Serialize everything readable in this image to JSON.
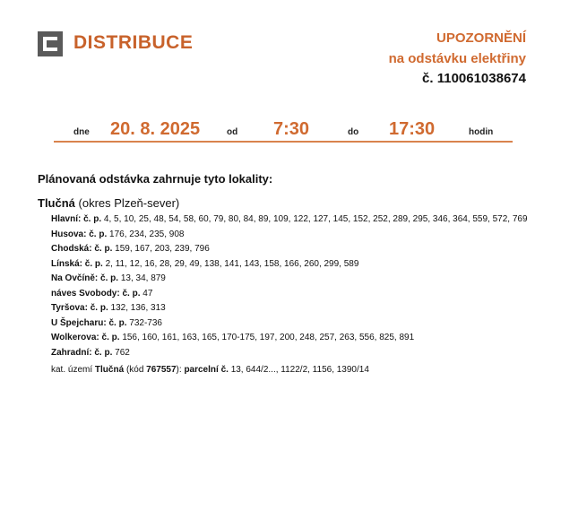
{
  "brand": {
    "name": "DISTRIBUCE",
    "logo_icon": "cez-logo-icon",
    "accent": "#d06a30"
  },
  "header": {
    "title": "UPOZORNĚNÍ",
    "subtitle": "na odstávku elektřiny",
    "number": "č. 110061038674"
  },
  "schedule": {
    "date_label": "dne",
    "date": "20. 8. 2025",
    "from_label": "od",
    "from": "7:30",
    "to_label": "do",
    "to": "17:30",
    "unit_label": "hodin"
  },
  "intro": "Plánovaná odstávka zahrnuje tyto lokality:",
  "town": {
    "name": "Tlučná",
    "district": "(okres Plzeň-sever)"
  },
  "streets": [
    {
      "name": "Hlavní:",
      "label": "č. p.",
      "numbers": "4, 5, 10, 25, 48, 54, 58, 60, 79, 80, 84, 89, 109, 122, 127, 145, 152, 252, 289, 295, 346, 364, 559, 572, 769"
    },
    {
      "name": "Husova:",
      "label": "č. p.",
      "numbers": "176, 234, 235, 908"
    },
    {
      "name": "Chodská:",
      "label": "č. p.",
      "numbers": "159, 167, 203, 239, 796"
    },
    {
      "name": "Línská:",
      "label": "č. p.",
      "numbers": "2, 11, 12, 16, 28, 29, 49, 138, 141, 143, 158, 166, 260, 299, 589"
    },
    {
      "name": "Na Ovčíně:",
      "label": "č. p.",
      "numbers": "13, 34, 879"
    },
    {
      "name": "náves Svobody:",
      "label": "č. p.",
      "numbers": "47"
    },
    {
      "name": "Tyršova:",
      "label": "č. p.",
      "numbers": "132, 136, 313"
    },
    {
      "name": "U Špejcharu:",
      "label": "č. p.",
      "numbers": "732-736"
    },
    {
      "name": "Wolkerova:",
      "label": "č. p.",
      "numbers": "156, 160, 161, 163, 165, 170-175, 197, 200, 248, 257, 263, 556, 825, 891"
    },
    {
      "name": "Zahradní:",
      "label": "č. p.",
      "numbers": "762"
    }
  ],
  "cadastre": {
    "prefix": "kat. území",
    "area": "Tlučná",
    "code_prefix": "(kód",
    "code": "767557",
    "code_suffix": "):",
    "parcel_label": "parcelní č.",
    "parcels": "13, 644/2..., 1122/2, 1156, 1390/14"
  }
}
